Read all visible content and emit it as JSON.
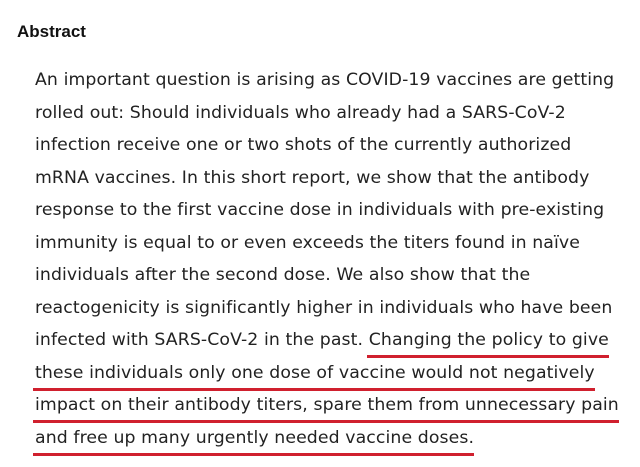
{
  "heading": "Abstract",
  "lines": [
    "An important question is arising as COVID-19 vaccines are getting",
    "rolled out: Should individuals who already had a SARS-CoV-2",
    "infection receive one or two shots of the currently authorized",
    "mRNA vaccines. In this short report, we show that the antibody",
    "response to the first vaccine dose in individuals with pre-existing",
    "immunity is equal to or even exceeds the titers found in naïve",
    "individuals after the second dose. We also show that the",
    "reactogenicity is significantly higher in individuals who have been",
    "infected with SARS-CoV-2 in the past. "
  ],
  "highlighted_lines": [
    "Changing the policy to give",
    "these individuals only one dose of vaccine would not negatively",
    "impact on their antibody titers, spare them from unnecessary pain",
    "and free up many urgently needed vaccine doses."
  ],
  "underline_color": "#d0202e"
}
